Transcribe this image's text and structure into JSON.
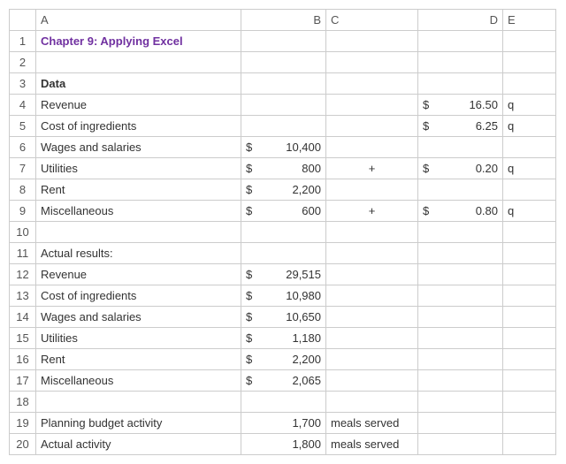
{
  "columns": [
    "A",
    "B",
    "C",
    "D",
    "E"
  ],
  "rows": [
    {
      "n": 1,
      "a": "Chapter 9: Applying Excel",
      "a_style": "bold link"
    },
    {
      "n": 2
    },
    {
      "n": 3,
      "a": "Data",
      "a_style": "bold"
    },
    {
      "n": 4,
      "a": "Revenue",
      "d": "16.50",
      "d_money": true,
      "e": "q"
    },
    {
      "n": 5,
      "a": "Cost of ingredients",
      "d": "6.25",
      "d_money": true,
      "e": "q"
    },
    {
      "n": 6,
      "a": "Wages and salaries",
      "b": "10,400",
      "b_money": true
    },
    {
      "n": 7,
      "a": "Utilities",
      "b": "800",
      "b_money": true,
      "c": "+",
      "c_center": true,
      "d": "0.20",
      "d_money": true,
      "e": "q"
    },
    {
      "n": 8,
      "a": "Rent",
      "b": "2,200",
      "b_money": true
    },
    {
      "n": 9,
      "a": "Miscellaneous",
      "b": "600",
      "b_money": true,
      "c": "+",
      "c_center": true,
      "d": "0.80",
      "d_money": true,
      "e": "q"
    },
    {
      "n": 10
    },
    {
      "n": 11,
      "a": "Actual results:"
    },
    {
      "n": 12,
      "a": "Revenue",
      "b": "29,515",
      "b_money": true
    },
    {
      "n": 13,
      "a": "Cost of ingredients",
      "b": "10,980",
      "b_money": true
    },
    {
      "n": 14,
      "a": "Wages and salaries",
      "b": "10,650",
      "b_money": true
    },
    {
      "n": 15,
      "a": "Utilities",
      "b": "1,180",
      "b_money": true
    },
    {
      "n": 16,
      "a": "Rent",
      "b": "2,200",
      "b_money": true
    },
    {
      "n": 17,
      "a": "Miscellaneous",
      "b": "2,065",
      "b_money": true
    },
    {
      "n": 18
    },
    {
      "n": 19,
      "a": "Planning budget activity",
      "b": "1,700",
      "c": "meals served"
    },
    {
      "n": 20,
      "a": "Actual activity",
      "b": "1,800",
      "c": "meals served"
    }
  ]
}
